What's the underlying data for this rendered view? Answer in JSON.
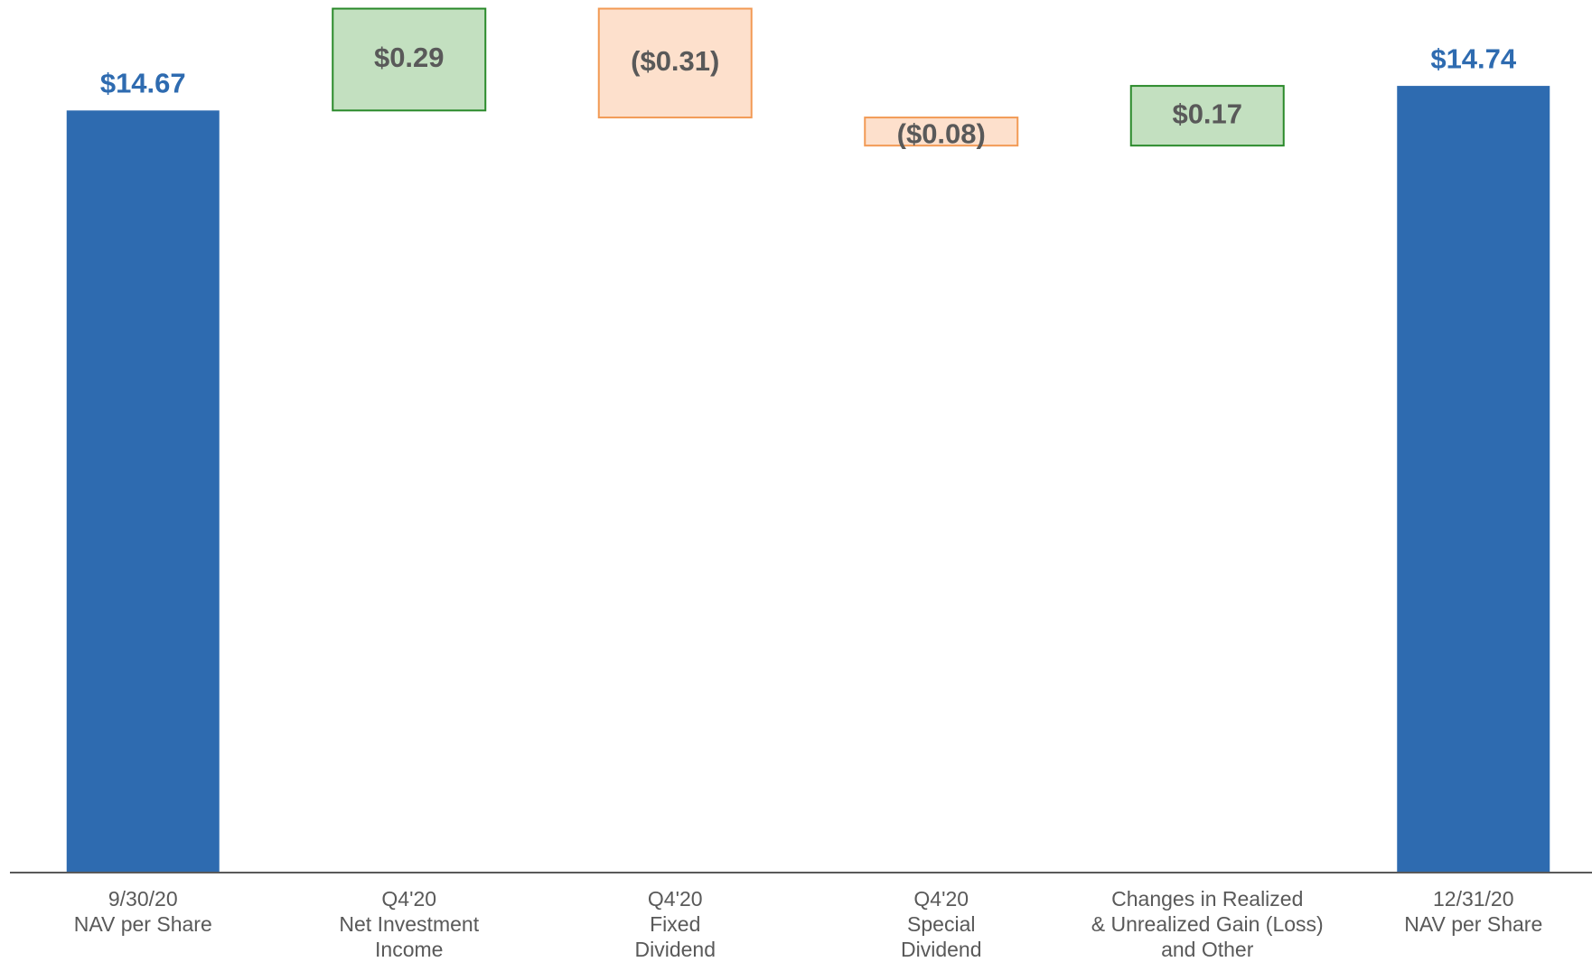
{
  "chart_data": {
    "type": "waterfall",
    "categories": [
      [
        "9/30/20",
        "NAV per Share"
      ],
      [
        "Q4'20",
        "Net Investment",
        "Income"
      ],
      [
        "Q4'20",
        "Fixed",
        "Dividend"
      ],
      [
        "Q4'20",
        "Special",
        "Dividend"
      ],
      [
        "Changes in Realized",
        "& Unrealized Gain (Loss)",
        "and Other"
      ],
      [
        "12/31/20",
        "NAV per Share"
      ]
    ],
    "values": [
      14.67,
      0.29,
      -0.31,
      -0.08,
      0.17,
      14.74
    ],
    "value_labels": [
      "$14.67",
      "$0.29",
      "($0.31)",
      "($0.08)",
      "$0.17",
      "$14.74"
    ],
    "measures": [
      "total",
      "relative",
      "relative",
      "relative",
      "relative",
      "total"
    ],
    "total_color": "#2e6bb0",
    "increase_color": "#c3e0c0",
    "increase_edge": "#2a8a2a",
    "decrease_color": "#fde0cc",
    "decrease_edge": "#f29a55",
    "ylim": [
      12.5,
      15.0
    ]
  }
}
